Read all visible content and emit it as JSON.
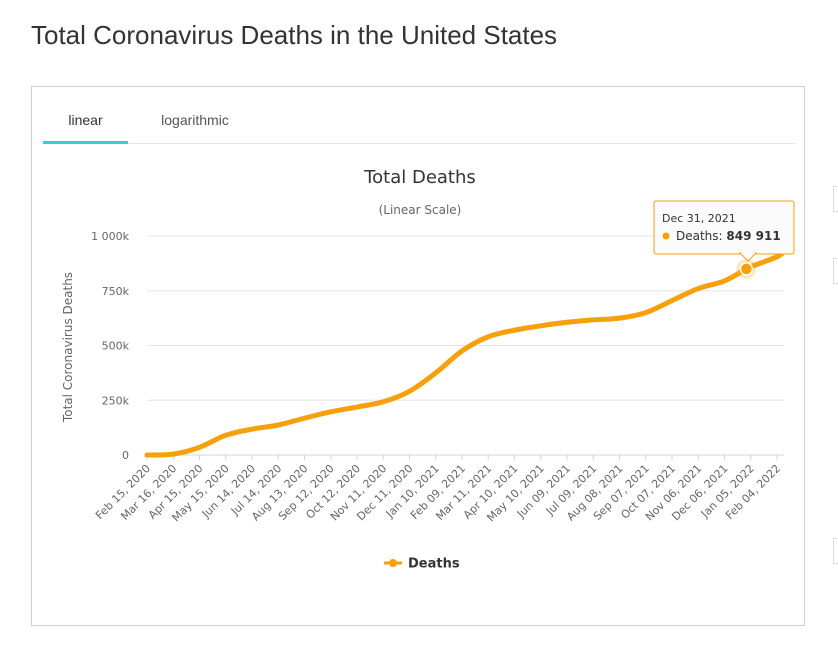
{
  "page": {
    "title": "Total Coronavirus Deaths in the United States"
  },
  "tabs": [
    {
      "label": "linear",
      "active": true
    },
    {
      "label": "logarithmic",
      "active": false
    }
  ],
  "tooltip": {
    "date": "Dec 31, 2021",
    "series": "Deaths",
    "value_label": "849 911"
  },
  "colors": {
    "series": "#f7a00c",
    "tab_active": "#3ec6e0"
  },
  "chart_data": {
    "type": "line",
    "title": "Total Deaths",
    "subtitle": "(Linear Scale)",
    "xlabel": "",
    "ylabel": "Total Coronavirus Deaths",
    "ylim": [
      0,
      1000000
    ],
    "y_ticks": [
      0,
      250000,
      500000,
      750000,
      1000000
    ],
    "y_tick_labels": [
      "0",
      "250k",
      "500k",
      "750k",
      "1 000k"
    ],
    "x_tick_labels": [
      "Feb 15, 2020",
      "Mar 16, 2020",
      "Apr 15, 2020",
      "May 15, 2020",
      "Jun 14, 2020",
      "Jul 14, 2020",
      "Aug 13, 2020",
      "Sep 12, 2020",
      "Oct 12, 2020",
      "Nov 11, 2020",
      "Dec 11, 2020",
      "Jan 10, 2021",
      "Feb 09, 2021",
      "Mar 11, 2021",
      "Apr 10, 2021",
      "May 10, 2021",
      "Jun 09, 2021",
      "Jul 09, 2021",
      "Aug 08, 2021",
      "Sep 07, 2021",
      "Oct 07, 2021",
      "Nov 06, 2021",
      "Dec 06, 2021",
      "Jan 05, 2022",
      "Feb 04, 2022"
    ],
    "legend": {
      "position": "bottom-center",
      "entries": [
        "Deaths"
      ]
    },
    "grid": true,
    "highlight": {
      "x": "Dec 31, 2021",
      "y": 849911
    },
    "series": [
      {
        "name": "Deaths",
        "color": "#f7a00c",
        "x": [
          "Feb 15, 2020",
          "Mar 16, 2020",
          "Apr 15, 2020",
          "May 15, 2020",
          "Jun 14, 2020",
          "Jul 14, 2020",
          "Aug 13, 2020",
          "Sep 12, 2020",
          "Oct 12, 2020",
          "Nov 11, 2020",
          "Dec 11, 2020",
          "Jan 10, 2021",
          "Feb 09, 2021",
          "Mar 11, 2021",
          "Apr 10, 2021",
          "May 10, 2021",
          "Jun 09, 2021",
          "Jul 09, 2021",
          "Aug 08, 2021",
          "Sep 07, 2021",
          "Oct 07, 2021",
          "Nov 06, 2021",
          "Dec 06, 2021",
          "Dec 31, 2021",
          "Jan 05, 2022",
          "Feb 04, 2022",
          "Feb 12, 2022"
        ],
        "values": [
          0,
          4000,
          35000,
          90000,
          118000,
          137000,
          168000,
          197000,
          219000,
          243000,
          291000,
          375000,
          475000,
          540000,
          570000,
          590000,
          606000,
          617000,
          625000,
          650000,
          705000,
          760000,
          795000,
          849911,
          860000,
          905000,
          930000
        ]
      }
    ]
  }
}
